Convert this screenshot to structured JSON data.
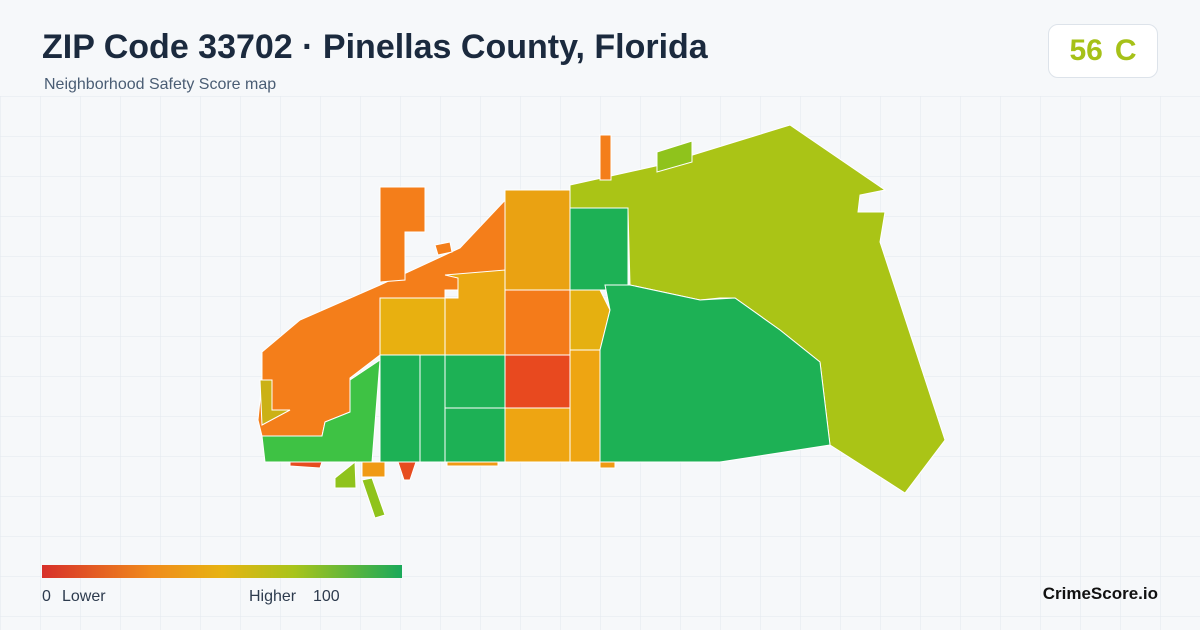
{
  "header": {
    "title": "ZIP Code 33702 · Pinellas County, Florida",
    "subtitle": "Neighborhood Safety Score map",
    "score": 56,
    "grade": "C"
  },
  "legend": {
    "min": 0,
    "min_label": "Lower",
    "max_label": "Higher",
    "max": 100
  },
  "footer": {
    "brand": "CrimeScore.io"
  }
}
